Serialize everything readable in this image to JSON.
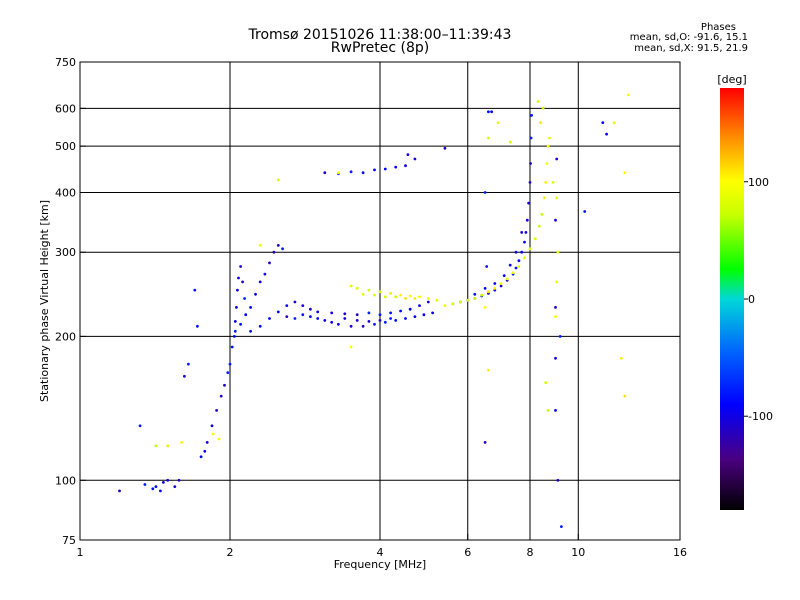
{
  "header": {
    "title_line1": "Tromsø 20151026 11:38:00–11:39:43",
    "title_line2": "RwPretec (8p)",
    "stats_title": "Phases",
    "stats_o": "mean, sd,O:  -91.6, 15.1",
    "stats_x": "mean, sd,X:  91.5, 21.9"
  },
  "chart_data": {
    "type": "scatter",
    "xlabel": "Frequency [MHz]",
    "ylabel": "Stationary phase Virtual Height [km]",
    "xscale": "log",
    "yscale": "log",
    "xlim": [
      1,
      16
    ],
    "ylim": [
      75,
      750
    ],
    "xticks": [
      {
        "v": 1,
        "label": "1"
      },
      {
        "v": 2,
        "label": "2"
      },
      {
        "v": 4,
        "label": "4"
      },
      {
        "v": 6,
        "label": "6"
      },
      {
        "v": 8,
        "label": "8"
      },
      {
        "v": 10,
        "label": "10"
      },
      {
        "v": 16,
        "label": "16"
      }
    ],
    "yticks": [
      {
        "v": 75,
        "label": "75"
      },
      {
        "v": 100,
        "label": "100"
      },
      {
        "v": 200,
        "label": "200"
      },
      {
        "v": 300,
        "label": "300"
      },
      {
        "v": 400,
        "label": "400"
      },
      {
        "v": 500,
        "label": "500"
      },
      {
        "v": 600,
        "label": "600"
      },
      {
        "v": 750,
        "label": "750"
      }
    ],
    "grid_x": [
      2,
      4,
      6,
      8,
      10
    ],
    "grid_y": [
      100,
      200,
      300,
      400,
      500,
      600
    ],
    "colorbar": {
      "label": "[deg]",
      "range": [
        -180,
        180
      ],
      "ticks": [
        {
          "v": 100,
          "label": "100"
        },
        {
          "v": 0,
          "label": "0"
        },
        {
          "v": -100,
          "label": "-100"
        }
      ]
    },
    "series": [
      {
        "name": "O",
        "color_phase": -95,
        "points": [
          [
            1.2,
            95
          ],
          [
            1.32,
            130
          ],
          [
            1.35,
            98
          ],
          [
            1.4,
            96
          ],
          [
            1.42,
            97
          ],
          [
            1.45,
            95
          ],
          [
            1.47,
            99
          ],
          [
            1.5,
            100
          ],
          [
            1.55,
            97
          ],
          [
            1.58,
            100
          ],
          [
            1.62,
            165
          ],
          [
            1.65,
            175
          ],
          [
            1.7,
            250
          ],
          [
            1.72,
            210
          ],
          [
            1.75,
            112
          ],
          [
            1.78,
            115
          ],
          [
            1.8,
            120
          ],
          [
            1.84,
            130
          ],
          [
            1.88,
            140
          ],
          [
            1.92,
            150
          ],
          [
            1.95,
            158
          ],
          [
            1.98,
            168
          ],
          [
            2.0,
            175
          ],
          [
            2.02,
            190
          ],
          [
            2.04,
            200
          ],
          [
            2.05,
            215
          ],
          [
            2.06,
            230
          ],
          [
            2.07,
            250
          ],
          [
            2.08,
            265
          ],
          [
            2.1,
            280
          ],
          [
            2.12,
            260
          ],
          [
            2.14,
            240
          ],
          [
            2.05,
            205
          ],
          [
            2.1,
            212
          ],
          [
            2.15,
            222
          ],
          [
            2.2,
            230
          ],
          [
            2.25,
            245
          ],
          [
            2.3,
            260
          ],
          [
            2.35,
            270
          ],
          [
            2.4,
            285
          ],
          [
            2.45,
            300
          ],
          [
            2.5,
            310
          ],
          [
            2.55,
            305
          ],
          [
            2.2,
            205
          ],
          [
            2.3,
            210
          ],
          [
            2.4,
            218
          ],
          [
            2.5,
            225
          ],
          [
            2.6,
            232
          ],
          [
            2.7,
            236
          ],
          [
            2.8,
            232
          ],
          [
            2.9,
            228
          ],
          [
            2.6,
            220
          ],
          [
            2.7,
            218
          ],
          [
            2.8,
            222
          ],
          [
            2.9,
            220
          ],
          [
            3.0,
            218
          ],
          [
            3.1,
            216
          ],
          [
            3.2,
            214
          ],
          [
            3.0,
            225
          ],
          [
            3.2,
            224
          ],
          [
            3.4,
            223
          ],
          [
            3.6,
            222
          ],
          [
            3.8,
            224
          ],
          [
            4.0,
            222
          ],
          [
            4.2,
            224
          ],
          [
            4.4,
            226
          ],
          [
            4.6,
            228
          ],
          [
            4.8,
            232
          ],
          [
            5.0,
            236
          ],
          [
            3.3,
            212
          ],
          [
            3.5,
            210
          ],
          [
            3.7,
            210
          ],
          [
            3.9,
            212
          ],
          [
            4.1,
            214
          ],
          [
            4.3,
            216
          ],
          [
            4.5,
            218
          ],
          [
            4.7,
            220
          ],
          [
            4.9,
            222
          ],
          [
            5.1,
            224
          ],
          [
            3.4,
            218
          ],
          [
            3.6,
            216
          ],
          [
            3.8,
            215
          ],
          [
            4.0,
            216
          ],
          [
            4.2,
            218
          ],
          [
            5.6,
            234
          ],
          [
            5.8,
            236
          ],
          [
            6.0,
            238
          ],
          [
            6.2,
            240
          ],
          [
            6.4,
            243
          ],
          [
            6.6,
            246
          ],
          [
            6.8,
            250
          ],
          [
            7.0,
            255
          ],
          [
            7.2,
            262
          ],
          [
            7.4,
            270
          ],
          [
            7.5,
            278
          ],
          [
            7.6,
            288
          ],
          [
            7.7,
            300
          ],
          [
            7.8,
            315
          ],
          [
            7.85,
            330
          ],
          [
            7.9,
            350
          ],
          [
            7.95,
            380
          ],
          [
            8.0,
            420
          ],
          [
            8.02,
            460
          ],
          [
            8.04,
            520
          ],
          [
            8.06,
            580
          ],
          [
            6.2,
            245
          ],
          [
            6.5,
            252
          ],
          [
            6.8,
            258
          ],
          [
            7.1,
            268
          ],
          [
            7.3,
            282
          ],
          [
            7.5,
            300
          ],
          [
            7.7,
            330
          ],
          [
            3.1,
            440
          ],
          [
            3.3,
            438
          ],
          [
            3.5,
            442
          ],
          [
            3.7,
            440
          ],
          [
            3.9,
            446
          ],
          [
            4.1,
            448
          ],
          [
            4.3,
            452
          ],
          [
            4.5,
            455
          ],
          [
            4.55,
            480
          ],
          [
            4.7,
            470
          ],
          [
            5.4,
            495
          ],
          [
            6.5,
            120
          ],
          [
            6.5,
            400
          ],
          [
            6.55,
            280
          ],
          [
            6.6,
            590
          ],
          [
            6.7,
            590
          ],
          [
            9.0,
            140
          ],
          [
            9.0,
            180
          ],
          [
            9.0,
            230
          ],
          [
            9.0,
            350
          ],
          [
            9.05,
            470
          ],
          [
            9.1,
            100
          ],
          [
            9.2,
            200
          ],
          [
            9.25,
            80
          ],
          [
            10.3,
            365
          ],
          [
            11.4,
            530
          ],
          [
            11.2,
            560
          ]
        ]
      },
      {
        "name": "X",
        "color_phase": 90,
        "points": [
          [
            1.42,
            118
          ],
          [
            1.5,
            118
          ],
          [
            1.6,
            120
          ],
          [
            1.85,
            125
          ],
          [
            1.9,
            122
          ],
          [
            2.3,
            310
          ],
          [
            2.5,
            425
          ],
          [
            3.5,
            255
          ],
          [
            3.6,
            252
          ],
          [
            3.8,
            250
          ],
          [
            4.0,
            248
          ],
          [
            4.2,
            246
          ],
          [
            4.4,
            244
          ],
          [
            4.6,
            243
          ],
          [
            4.8,
            242
          ],
          [
            5.0,
            240
          ],
          [
            5.2,
            238
          ],
          [
            3.7,
            245
          ],
          [
            3.9,
            244
          ],
          [
            4.1,
            242
          ],
          [
            4.3,
            242
          ],
          [
            4.5,
            240
          ],
          [
            4.7,
            240
          ],
          [
            3.5,
            190
          ],
          [
            3.3,
            440
          ],
          [
            5.4,
            232
          ],
          [
            5.6,
            234
          ],
          [
            5.8,
            236
          ],
          [
            6.0,
            238
          ],
          [
            6.2,
            240
          ],
          [
            6.4,
            244
          ],
          [
            6.6,
            248
          ],
          [
            6.8,
            252
          ],
          [
            7.0,
            258
          ],
          [
            7.2,
            264
          ],
          [
            7.4,
            272
          ],
          [
            7.6,
            280
          ],
          [
            7.8,
            292
          ],
          [
            8.0,
            305
          ],
          [
            8.2,
            320
          ],
          [
            8.35,
            340
          ],
          [
            8.45,
            360
          ],
          [
            8.55,
            390
          ],
          [
            8.6,
            420
          ],
          [
            8.65,
            460
          ],
          [
            8.7,
            500
          ],
          [
            8.75,
            520
          ],
          [
            6.9,
            560
          ],
          [
            6.6,
            520
          ],
          [
            7.3,
            510
          ],
          [
            8.3,
            620
          ],
          [
            8.5,
            600
          ],
          [
            8.4,
            560
          ],
          [
            6.6,
            170
          ],
          [
            6.5,
            230
          ],
          [
            9.0,
            220
          ],
          [
            9.05,
            260
          ],
          [
            9.1,
            300
          ],
          [
            9.05,
            390
          ],
          [
            8.9,
            420
          ],
          [
            8.6,
            160
          ],
          [
            8.7,
            140
          ],
          [
            12.4,
            150
          ],
          [
            12.2,
            180
          ],
          [
            12.4,
            440
          ],
          [
            12.6,
            640
          ],
          [
            11.8,
            560
          ]
        ]
      }
    ]
  }
}
